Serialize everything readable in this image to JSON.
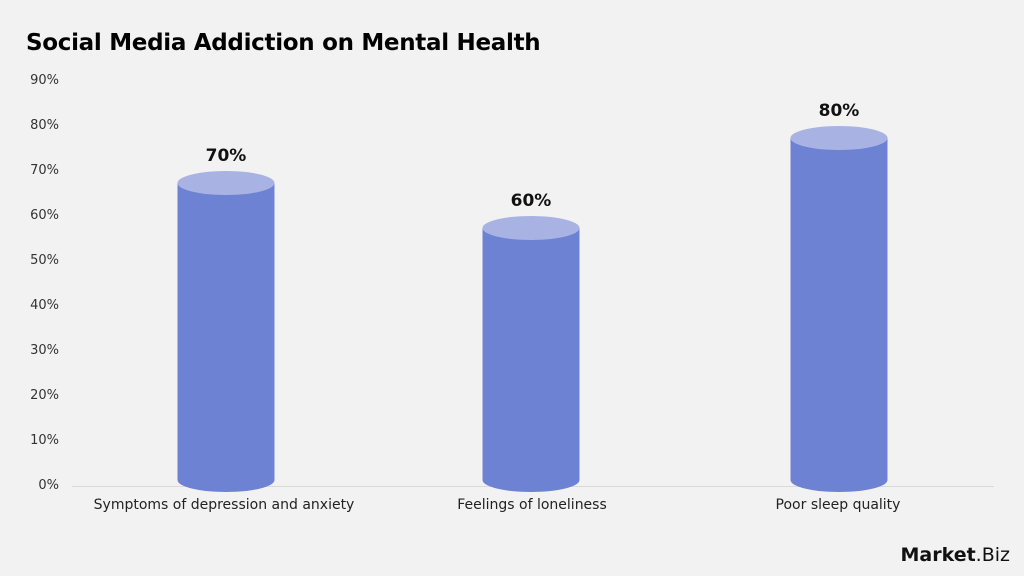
{
  "title": "Social Media Addiction on Mental Health",
  "y_ticks": [
    "90%",
    "80%",
    "70%",
    "60%",
    "50%",
    "40%",
    "30%",
    "20%",
    "10%",
    "0%"
  ],
  "bars": [
    {
      "label": "Symptoms of depression and anxiety",
      "value": 70,
      "value_label": "70%"
    },
    {
      "label": "Feelings of loneliness",
      "value": 60,
      "value_label": "60%"
    },
    {
      "label": "Poor sleep quality",
      "value": 80,
      "value_label": "80%"
    }
  ],
  "colors": {
    "bar_body": "#6e82d4",
    "bar_top": "#a8b3e4",
    "background": "#f2f2f2"
  },
  "logo": {
    "bold": "Market",
    "rest": ".Biz"
  },
  "chart_data": {
    "type": "bar",
    "title": "Social Media Addiction on Mental Health",
    "categories": [
      "Symptoms of depression and anxiety",
      "Feelings of loneliness",
      "Poor sleep quality"
    ],
    "values": [
      70,
      60,
      80
    ],
    "xlabel": "",
    "ylabel": "",
    "ylim": [
      0,
      90
    ],
    "y_tick_labels": [
      "0%",
      "10%",
      "20%",
      "30%",
      "40%",
      "50%",
      "60%",
      "70%",
      "80%",
      "90%"
    ],
    "data_labels": [
      "70%",
      "60%",
      "80%"
    ],
    "grid": false,
    "legend": null,
    "style": "cylinder"
  }
}
